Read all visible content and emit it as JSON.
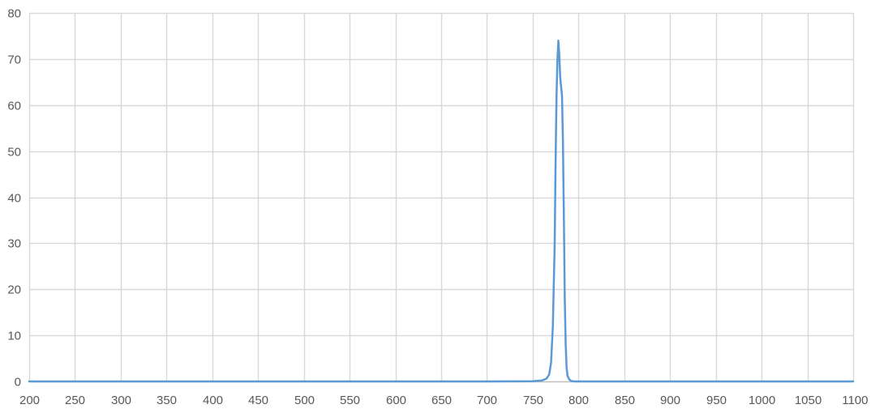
{
  "chart_data": {
    "type": "line",
    "title": "",
    "xlabel": "",
    "ylabel": "",
    "xlim": [
      200,
      1100
    ],
    "ylim": [
      0,
      80
    ],
    "x_ticks": [
      200,
      250,
      300,
      350,
      400,
      450,
      500,
      550,
      600,
      650,
      700,
      750,
      800,
      850,
      900,
      950,
      1000,
      1050,
      1100
    ],
    "y_ticks": [
      0,
      10,
      20,
      30,
      40,
      50,
      60,
      70,
      80
    ],
    "x_tick_labels": [
      "200",
      "250",
      "300",
      "350",
      "400",
      "450",
      "500",
      "550",
      "600",
      "650",
      "700",
      "750",
      "800",
      "850",
      "900",
      "950",
      "1000",
      "1050",
      "1100"
    ],
    "y_tick_labels": [
      "0",
      "10",
      "20",
      "30",
      "40",
      "50",
      "60",
      "70",
      "80"
    ],
    "grid": true,
    "legend": "none",
    "series": [
      {
        "color": "#5b9bd5",
        "x": [
          200,
          300,
          400,
          500,
          600,
          700,
          750,
          760,
          765,
          768,
          770,
          772,
          774,
          775,
          776,
          777,
          778,
          779,
          780,
          781,
          782,
          783,
          784,
          785,
          786,
          787,
          788,
          790,
          792,
          795,
          800,
          850,
          900,
          1000,
          1100
        ],
        "y": [
          0,
          0,
          0,
          0,
          0,
          0,
          0.05,
          0.2,
          0.6,
          1.5,
          4,
          12,
          30,
          48,
          62,
          70,
          74,
          71,
          66,
          64,
          62,
          52,
          36,
          18,
          8,
          3,
          1.2,
          0.4,
          0.1,
          0,
          0,
          0,
          0,
          0,
          0
        ]
      }
    ]
  }
}
